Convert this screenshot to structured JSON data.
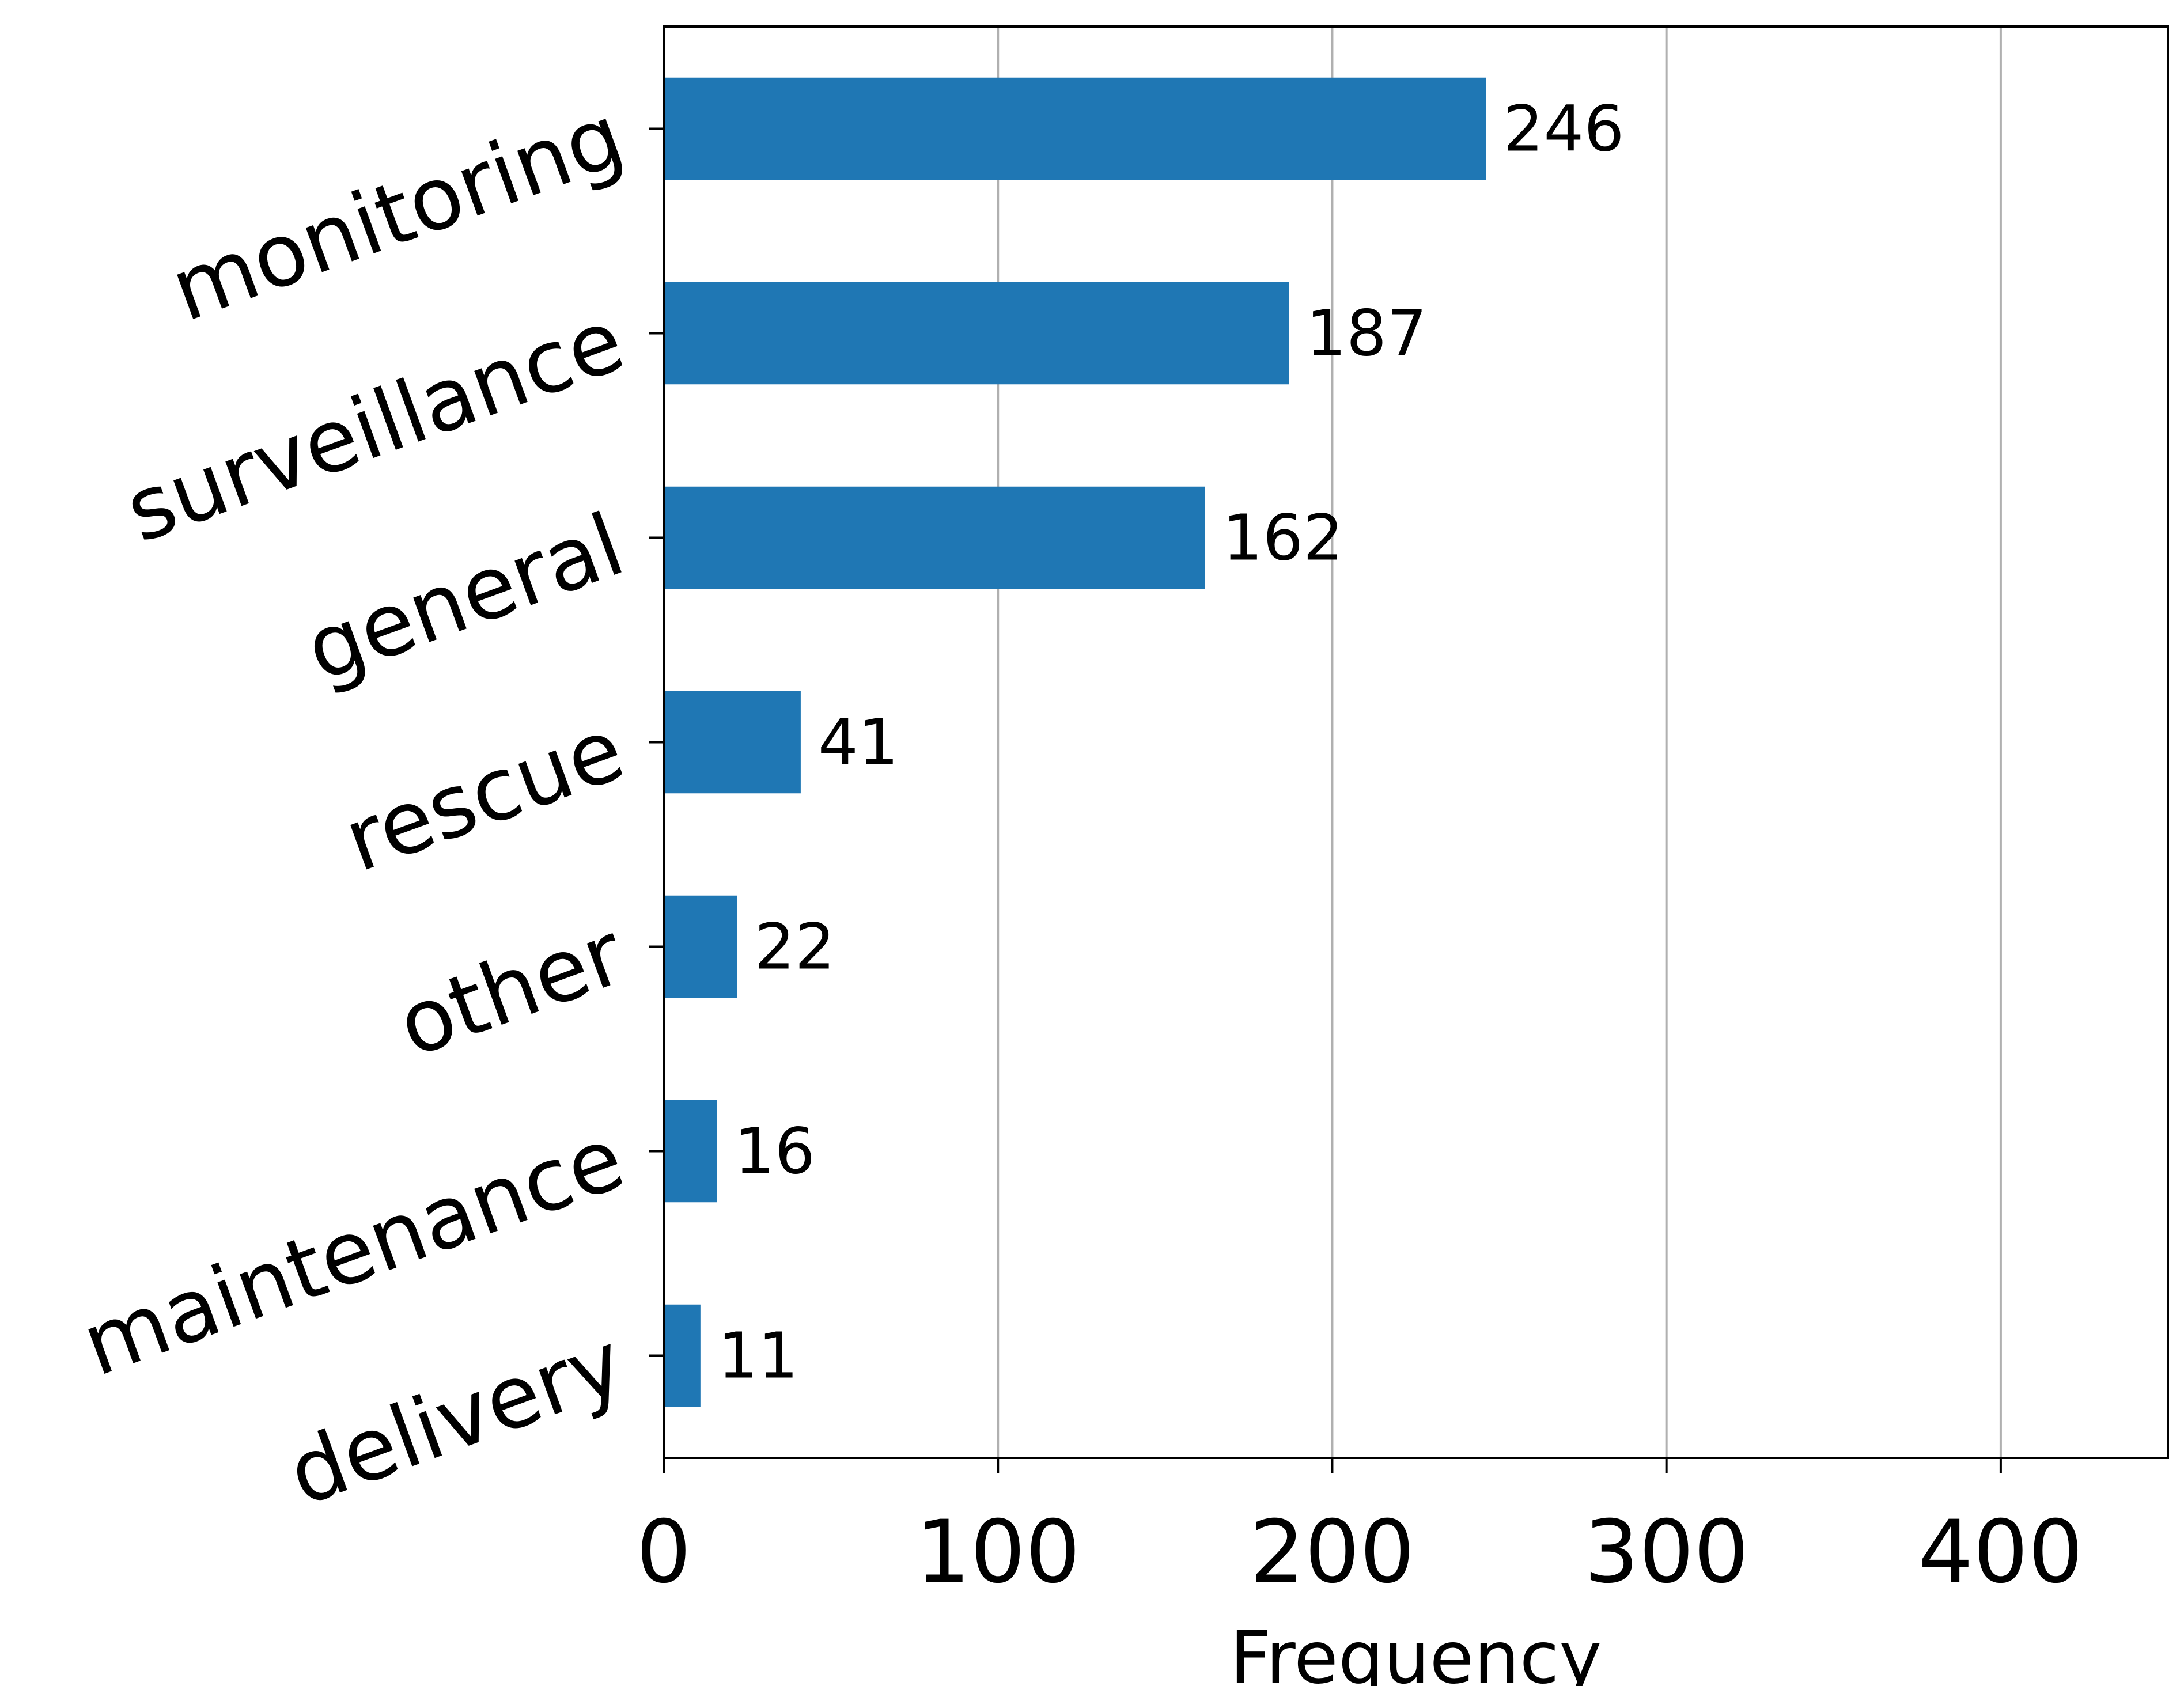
{
  "chart_data": {
    "type": "bar",
    "orientation": "horizontal",
    "categories": [
      "monitoring",
      "surveillance",
      "general",
      "rescue",
      "other",
      "maintenance",
      "delivery"
    ],
    "values": [
      246,
      187,
      162,
      41,
      22,
      16,
      11
    ],
    "value_labels": [
      "246",
      "187",
      "162",
      "41",
      "22",
      "16",
      "11"
    ],
    "title": "",
    "xlabel": "Frequency",
    "ylabel": "",
    "xlim": [
      0,
      450
    ],
    "xticks": [
      0,
      100,
      200,
      300,
      400
    ],
    "xtick_labels": [
      "0",
      "100",
      "200",
      "300",
      "400"
    ],
    "grid": "x-axis vertical lines",
    "legend": "none",
    "bar_color": "#1f77b4",
    "grid_color": "#b0b0b0"
  }
}
